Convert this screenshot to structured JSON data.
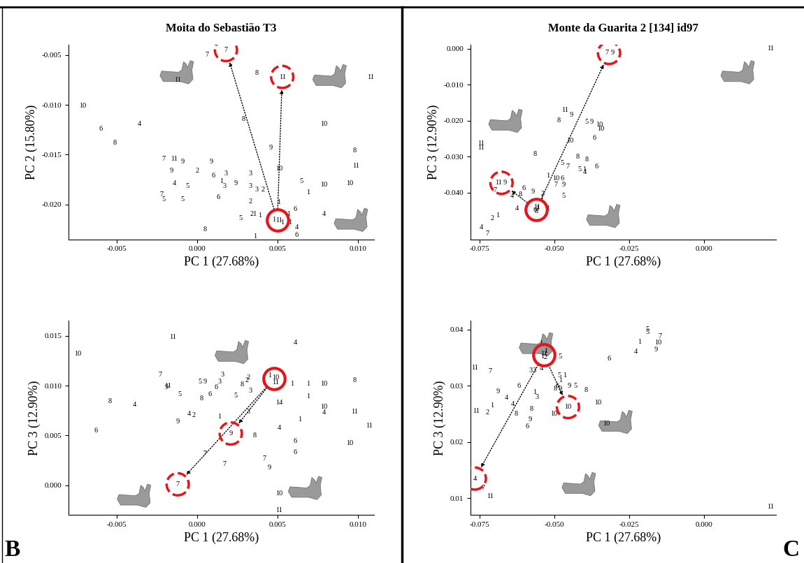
{
  "panel_labels": [
    "B",
    "C"
  ],
  "chart_data": [
    {
      "type": "scatter",
      "title": "Moita do Sebastião T3",
      "x_label": "PC 1 (27.68%)",
      "y_label": "PC 2 (15.80%)",
      "xlim": [
        -0.008,
        0.011
      ],
      "ylim": [
        -0.0235,
        -0.004
      ],
      "xticks": [
        -0.005,
        {
          "value": 0,
          "label": "0.000"
        },
        0.005,
        {
          "value": 0.01,
          "label": "0.010"
        }
      ],
      "yticks": [
        -0.005,
        {
          "value": -0.01,
          "label": "-0.010"
        },
        -0.015,
        {
          "value": -0.02,
          "label": "-0.020"
        }
      ],
      "color": "#e8141a",
      "x": [
        0.0006,
        0.0018,
        -0.0012,
        0.0037,
        0.0053,
        0.0108,
        -0.0071,
        -0.006,
        -0.0036,
        -0.0051,
        0.0029,
        0.0079,
        0.0046,
        0.0098,
        0.0099,
        -0.0021,
        -0.0014,
        -0.0009,
        0.0009,
        -0.0016,
        0.0,
        0.001,
        0.0018,
        0.0033,
        0.0051,
        -0.0014,
        -0.0006,
        0.0015,
        0.0017,
        0.0024,
        0.0033,
        0.0037,
        0.0041,
        0.0065,
        0.0079,
        0.0095,
        -0.0022,
        -0.0021,
        -0.0009,
        0.0013,
        0.0033,
        0.0051,
        0.0069,
        0.0035,
        0.0039,
        0.0061,
        0.0057,
        0.0027,
        0.0058,
        0.0062,
        0.0079,
        0.0005,
        0.0036,
        0.0062,
        0.0048,
        0.0051,
        0.0053
      ],
      "y": [
        -0.005,
        -0.0045,
        -0.0075,
        -0.0068,
        -0.0072,
        -0.0072,
        -0.0101,
        -0.0124,
        -0.0119,
        -0.0138,
        -0.0114,
        -0.0119,
        -0.0143,
        -0.0146,
        -0.0161,
        -0.0154,
        -0.0154,
        -0.0157,
        -0.0157,
        -0.0166,
        -0.0166,
        -0.0171,
        -0.0169,
        -0.0169,
        -0.0164,
        -0.0179,
        -0.0182,
        -0.0177,
        -0.0182,
        -0.0179,
        -0.0182,
        -0.0185,
        -0.0185,
        -0.0177,
        -0.018,
        -0.0179,
        -0.019,
        -0.0195,
        -0.0195,
        -0.0193,
        -0.0197,
        -0.0198,
        -0.0188,
        -0.021,
        -0.0211,
        -0.0205,
        -0.021,
        -0.0214,
        -0.0218,
        -0.0223,
        -0.021,
        -0.0225,
        -0.0232,
        -0.0231,
        -0.0215,
        -0.0216,
        -0.0218
      ],
      "labels": [
        "7",
        "7",
        "11",
        "8",
        "11",
        "11",
        "10",
        "6",
        "4",
        "8",
        "8",
        "10",
        "9",
        "8",
        "11",
        "7",
        "11",
        "9",
        "9",
        "9",
        "2",
        "6",
        "3",
        "3",
        "10",
        "4",
        "5",
        "1",
        "3",
        "9",
        "3",
        "3",
        "2",
        "5",
        "10",
        "10",
        "7",
        "5",
        "5",
        "6",
        "2",
        "1",
        "1",
        "21",
        "1",
        "6",
        "1",
        "5",
        "1",
        "4",
        "4",
        "8",
        "1",
        "6",
        "1",
        "11",
        "1"
      ],
      "centroid": {
        "x": 0.005,
        "y": -0.0216
      },
      "targets": {
        "x": [
          0.0018,
          0.0053
        ],
        "y": [
          -0.0045,
          -0.0072
        ]
      }
    },
    {
      "type": "scatter",
      "title": "Monte da Guarita 2 [134] id97",
      "x_label": "PC 1 (27.68%)",
      "y_label": "PC 3 (12.90%)",
      "xlim": [
        -0.078,
        0.024
      ],
      "ylim": [
        -0.053,
        0.001
      ],
      "xticks": [
        -0.075,
        {
          "value": -0.05,
          "label": "-0.050"
        },
        -0.025,
        {
          "value": 0,
          "label": "0.000"
        }
      ],
      "yticks": [
        {
          "value": 0,
          "label": "0.000"
        },
        {
          "value": -0.01,
          "label": "-0.010"
        },
        {
          "value": -0.02,
          "label": "-0.020"
        },
        {
          "value": -0.03,
          "label": "-0.030"
        },
        {
          "value": -0.04,
          "label": "-0.040"
        }
      ],
      "color": "#e8141a",
      "x": [
        0.0222,
        -0.0325,
        -0.0305,
        -0.0465,
        -0.0442,
        -0.0484,
        -0.0391,
        -0.0374,
        -0.0349,
        -0.0344,
        -0.0744,
        -0.0744,
        -0.0448,
        -0.0366,
        -0.0564,
        -0.0423,
        -0.0391,
        -0.0473,
        -0.0456,
        -0.0359,
        -0.0416,
        -0.0399,
        -0.0399,
        -0.0522,
        -0.0494,
        -0.0473,
        -0.0494,
        -0.0469,
        -0.0469,
        -0.0685,
        -0.0665,
        -0.0697,
        -0.064,
        -0.0613,
        -0.0602,
        -0.057,
        -0.0542,
        -0.0538,
        -0.0624,
        -0.069,
        -0.0707,
        -0.0744,
        -0.0723,
        -0.0555,
        -0.0565,
        -0.056,
        -0.0558,
        -0.052
      ],
      "y": [
        0.0,
        -0.0012,
        -0.0012,
        -0.017,
        -0.0185,
        -0.02,
        -0.0203,
        -0.0203,
        -0.0211,
        -0.0223,
        -0.0263,
        -0.0275,
        -0.0256,
        -0.0248,
        -0.0293,
        -0.0301,
        -0.0308,
        -0.0319,
        -0.0328,
        -0.0328,
        -0.0335,
        -0.0335,
        -0.0343,
        -0.0353,
        -0.0361,
        -0.0361,
        -0.0379,
        -0.0379,
        -0.0409,
        -0.0373,
        -0.0373,
        -0.0394,
        -0.0409,
        -0.0406,
        -0.0388,
        -0.0398,
        -0.0414,
        -0.0403,
        -0.0444,
        -0.0463,
        -0.0471,
        -0.0496,
        -0.0514,
        -0.0445,
        -0.0448,
        -0.0452,
        -0.044,
        -0.0445
      ],
      "labels": [
        "11",
        "7",
        "9",
        "11",
        "9",
        "8",
        "5",
        "9",
        "10",
        "10",
        "11",
        "11",
        "10",
        "6",
        "8",
        "8",
        "8",
        "5",
        "7",
        "6",
        "5",
        "1",
        "4",
        "1",
        "10",
        "6",
        "7",
        "9",
        "5",
        "11",
        "9",
        "7",
        "4",
        "8",
        "6",
        "9",
        "1",
        "3",
        "4",
        "1",
        "2",
        "4",
        "7",
        "1",
        "6",
        "8",
        "11",
        "1"
      ],
      "centroid": {
        "x": -0.056,
        "y": -0.0448
      },
      "targets": {
        "x": [
          -0.0317,
          -0.0676
        ],
        "y": [
          -0.0012,
          -0.0373
        ]
      }
    },
    {
      "type": "scatter",
      "x_label": "PC 1 (27.68%)",
      "y_label": "PC 3 (12.90%)",
      "xlim": [
        -0.008,
        0.011
      ],
      "ylim": [
        -0.003,
        0.0165
      ],
      "xticks": [
        -0.005,
        {
          "value": 0,
          "label": "0.000"
        },
        0.005,
        {
          "value": 0.01,
          "label": "0.010"
        }
      ],
      "yticks": [
        {
          "value": 0,
          "label": "0.000"
        },
        0.005,
        {
          "value": 0.01,
          "label": "0.010"
        },
        0.015
      ],
      "color": "#e8141a",
      "x": [
        -0.0015,
        0.0061,
        -0.0074,
        -0.0023,
        0.0016,
        0.0032,
        0.0002,
        0.0005,
        0.0014,
        0.0028,
        0.0031,
        0.0042,
        0.0059,
        0.0069,
        -0.0018,
        -0.0019,
        -0.0011,
        0.0008,
        0.0012,
        0.0024,
        0.0033,
        0.0079,
        0.0098,
        0.0003,
        0.0069,
        0.0051,
        -0.0054,
        -0.0039,
        0.0032,
        0.0079,
        0.0079,
        -0.0005,
        -0.0002,
        0.0014,
        0.0064,
        -0.0012,
        0.0051,
        0.0098,
        0.0107,
        -0.0063,
        0.0061,
        0.0021,
        0.0036,
        0.0005,
        0.0017,
        0.0042,
        0.0061,
        0.0095,
        0.0045,
        0.0051,
        -0.0012,
        0.0051,
        0.0045,
        0.0049,
        0.0049
      ],
      "y": [
        0.0149,
        0.0143,
        0.0132,
        0.0111,
        0.0111,
        0.0108,
        0.0104,
        0.0104,
        0.0104,
        0.0101,
        0.0105,
        0.0102,
        0.0102,
        0.0102,
        0.01,
        0.0098,
        0.0091,
        0.0091,
        0.0098,
        0.009,
        0.0095,
        0.0102,
        0.0105,
        0.0087,
        0.0089,
        0.0083,
        0.0084,
        0.0081,
        0.0074,
        0.0079,
        0.0073,
        0.0072,
        0.007,
        0.0069,
        0.0066,
        0.0064,
        0.0058,
        0.0074,
        0.006,
        0.0055,
        0.0044,
        0.0052,
        0.005,
        0.0032,
        0.0021,
        0.0027,
        0.0033,
        0.0042,
        0.0018,
        -0.0008,
        0.0001,
        -0.0025,
        0.011,
        0.0108,
        0.0103
      ],
      "labels": [
        "11",
        "4",
        "10",
        "7",
        "3",
        "2",
        "5",
        "9",
        "3",
        "8",
        "2",
        "1",
        "1",
        "1",
        "11",
        "9",
        "5",
        "6",
        "6",
        "5",
        "3",
        "10",
        "8",
        "8",
        "1",
        "14",
        "8",
        "4",
        "3",
        "10",
        "4",
        "4",
        "2",
        "1",
        "1",
        "9",
        "4",
        "11",
        "11",
        "6",
        "6",
        "9",
        "8",
        "7",
        "7",
        "7",
        "6",
        "10",
        "9",
        "10",
        "7",
        "11",
        "1",
        "10",
        "11"
      ],
      "centroid": {
        "x": 0.0048,
        "y": 0.0107
      },
      "targets": {
        "x": [
          0.0021,
          -0.0012
        ],
        "y": [
          0.0052,
          0.0001
        ]
      }
    },
    {
      "type": "scatter",
      "x_label": "PC 1 (27.68%)",
      "y_label": "PC 3 (12.90%)",
      "xlim": [
        -0.078,
        0.024
      ],
      "ylim": [
        0.007,
        0.0415
      ],
      "xticks": [
        -0.075,
        {
          "value": -0.05,
          "label": "-0.050"
        },
        -0.025,
        {
          "value": 0,
          "label": "0.000"
        }
      ],
      "yticks": [
        0.01,
        0.02,
        0.03,
        0.04
      ],
      "color": "#e8141a",
      "x": [
        -0.0188,
        -0.0188,
        -0.0148,
        -0.0216,
        -0.0154,
        -0.0228,
        -0.0161,
        -0.0317,
        -0.0353,
        -0.0327,
        -0.0765,
        -0.0714,
        -0.0545,
        -0.0535,
        -0.054,
        -0.053,
        -0.0528,
        -0.048,
        -0.0542,
        -0.0578,
        -0.0568,
        -0.0482,
        -0.0465,
        -0.048,
        -0.049,
        -0.045,
        -0.0429,
        -0.0497,
        -0.048,
        -0.0395,
        -0.0617,
        -0.0687,
        -0.0565,
        -0.0558,
        -0.0659,
        -0.0638,
        -0.0708,
        -0.0761,
        -0.0723,
        -0.0575,
        -0.0627,
        -0.0581,
        -0.0501,
        -0.059,
        -0.0454,
        -0.0765,
        -0.0737,
        -0.0714,
        0.0222
      ],
      "y": [
        0.04,
        0.0395,
        0.0388,
        0.0378,
        0.0376,
        0.036,
        0.0364,
        0.0348,
        0.027,
        0.0232,
        0.0332,
        0.0325,
        0.0375,
        0.0357,
        0.0352,
        0.035,
        0.0362,
        0.0352,
        0.033,
        0.0327,
        0.0327,
        0.0318,
        0.0318,
        0.031,
        0.03,
        0.03,
        0.03,
        0.0295,
        0.0295,
        0.0292,
        0.03,
        0.029,
        0.0288,
        0.028,
        0.0278,
        0.0267,
        0.0265,
        0.0255,
        0.0252,
        0.0259,
        0.025,
        0.024,
        0.025,
        0.0228,
        0.0262,
        0.0135,
        0.0118,
        0.0103,
        0.0085
      ],
      "labels": [
        "5",
        "5",
        "7",
        "1",
        "10",
        "4",
        "9",
        "6",
        "10",
        "10",
        "11",
        "7",
        "1",
        "11",
        "1",
        "2",
        "1",
        "5",
        "4",
        "3",
        "3",
        "5",
        "1",
        "1",
        "6",
        "9",
        "5",
        "8",
        "9",
        "8",
        "6",
        "9",
        "1",
        "3",
        "4",
        "4",
        "1",
        "11",
        "2",
        "8",
        "8",
        "9",
        "10",
        "6",
        "10",
        "4",
        "7",
        "11",
        "11"
      ],
      "centroid": {
        "x": -0.0535,
        "y": 0.0355
      },
      "targets": {
        "x": [
          -0.0454,
          -0.0765
        ],
        "y": [
          0.0262,
          0.0135
        ]
      }
    }
  ]
}
